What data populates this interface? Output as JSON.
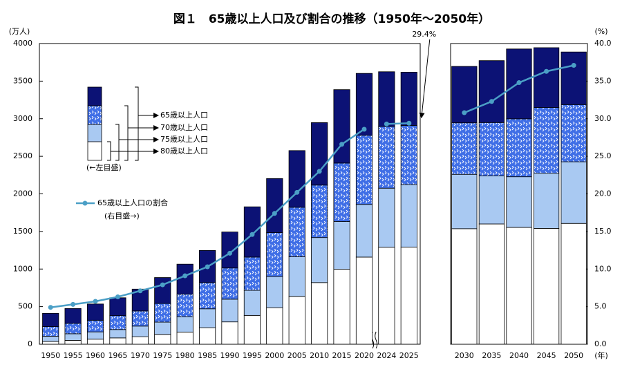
{
  "chart_data": [
    {
      "type": "bar",
      "title": "図１　65歳以上人口及び割合の推移（1950年～2050年）",
      "ylabel": "(万人)",
      "legend_note_bars": "(←左目盛)",
      "legend_note_line": "(右目盛→)",
      "categories": [
        "1950",
        "1955",
        "1960",
        "1965",
        "1970",
        "1975",
        "1980",
        "1985",
        "1990",
        "1995",
        "2000",
        "2005",
        "2010",
        "2015",
        "2020",
        "2024",
        "2025"
      ],
      "series": [
        {
          "name": "80歳以上人口",
          "color": "#ffffff",
          "values": [
            37,
            51,
            67,
            84,
            100,
            130,
            162,
            220,
            297,
            383,
            486,
            636,
            820,
            997,
            1159,
            1290,
            1292
          ]
        },
        {
          "name": "75歳以上人口",
          "color": "#a9c9f2",
          "values": [
            69,
            88,
            97,
            111,
            141,
            164,
            204,
            251,
            302,
            334,
            414,
            528,
            599,
            635,
            701,
            786,
            832
          ]
        },
        {
          "name": "70歳以上人口",
          "color": "#3f6ee6",
          "values": [
            128,
            139,
            155,
            185,
            201,
            248,
            301,
            348,
            415,
            442,
            584,
            658,
            698,
            778,
            920,
            822,
            787
          ]
        },
        {
          "name": "65歳以上人口",
          "color": "#0c1275",
          "values": [
            177,
            197,
            216,
            238,
            291,
            345,
            398,
            428,
            479,
            669,
            720,
            754,
            831,
            977,
            823,
            727,
            708
          ]
        },
        {
          "name": "65歳以上人口の割合",
          "type": "line",
          "axis": "y2",
          "color": "#4b9fc6",
          "values": [
            4.9,
            5.3,
            5.7,
            6.3,
            7.1,
            7.9,
            9.1,
            10.3,
            12.1,
            14.6,
            17.4,
            20.2,
            23.0,
            26.6,
            28.6,
            29.3,
            29.4
          ],
          "value_labels": [
            null,
            null,
            null,
            null,
            null,
            null,
            null,
            null,
            null,
            null,
            null,
            null,
            null,
            null,
            null,
            null,
            "29.4%"
          ]
        }
      ],
      "ylim": [
        0,
        4000
      ],
      "yticks": [
        0,
        500,
        1000,
        1500,
        2000,
        2500,
        3000,
        3500,
        4000
      ],
      "y2lim": [
        0,
        40
      ]
    },
    {
      "type": "bar",
      "y2label": "(%)",
      "xlabel": "(年)",
      "categories": [
        "2030",
        "2035",
        "2040",
        "2045",
        "2050"
      ],
      "series": [
        {
          "name": "80歳以上人口",
          "color": "#ffffff",
          "values": [
            1537,
            1600,
            1554,
            1541,
            1607
          ]
        },
        {
          "name": "75歳以上人口",
          "color": "#a9c9f2",
          "values": [
            723,
            639,
            674,
            734,
            820
          ]
        },
        {
          "name": "70歳以上人口",
          "color": "#3f6ee6",
          "values": [
            685,
            710,
            771,
            874,
            761
          ]
        },
        {
          "name": "65歳以上人口",
          "color": "#0c1275",
          "values": [
            751,
            824,
            929,
            796,
            700
          ]
        },
        {
          "name": "65歳以上人口の割合",
          "type": "line",
          "axis": "y2",
          "color": "#4b9fc6",
          "values": [
            30.8,
            32.3,
            34.8,
            36.3,
            37.1
          ]
        }
      ],
      "ylim": [
        0,
        4000
      ],
      "y2lim": [
        0,
        40
      ],
      "y2ticks": [
        {
          "value": 0,
          "label": "0.0"
        },
        {
          "value": 5,
          "label": "5.0"
        },
        {
          "value": 10,
          "label": "10.0"
        },
        {
          "value": 15,
          "label": "15.0"
        },
        {
          "value": 20,
          "label": "20.0"
        },
        {
          "value": 25,
          "label": "25.0"
        },
        {
          "value": 30,
          "label": "30.0"
        },
        {
          "value": 35,
          "label": "35.0"
        },
        {
          "value": 40,
          "label": "40.0"
        }
      ]
    }
  ]
}
